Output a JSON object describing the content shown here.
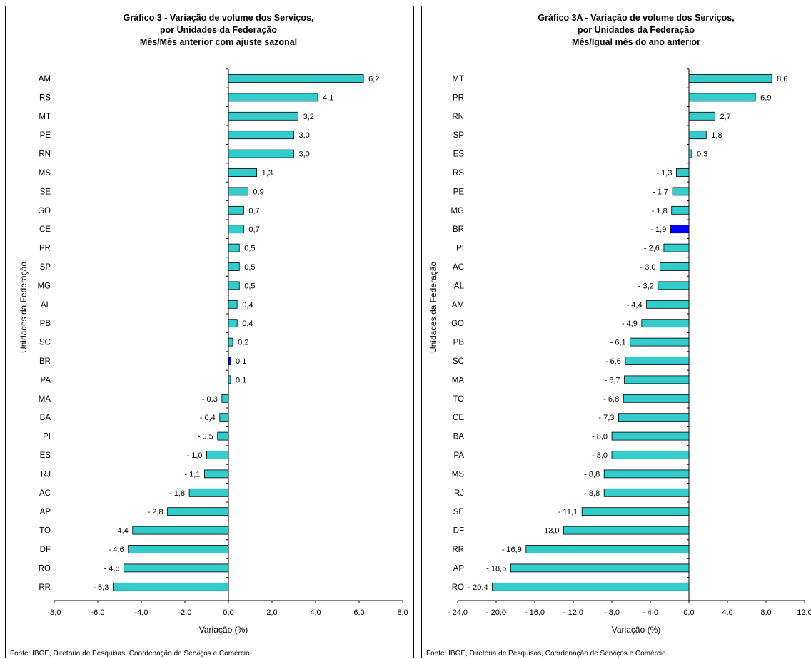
{
  "source_note": "Fonte: IBGE, Diretoria de Pesquisas, Coordenação de Serviços e Comércio.",
  "chart_data": [
    {
      "type": "bar",
      "orientation": "horizontal",
      "title": [
        "Gráfico 3 - Variação de volume dos Serviços,",
        "por Unidades da Federação",
        "Mês/Mês anterior com ajuste sazonal"
      ],
      "xlabel": "Variação (%)",
      "ylabel": "Unidades da Federação",
      "xlim": [
        -8,
        8
      ],
      "xticks": [
        -8,
        -6,
        -4,
        -2,
        0,
        2,
        4,
        6,
        8
      ],
      "xtick_labels": [
        "-8,0",
        "-6,0",
        "-4,0",
        "-2,0",
        "0,0",
        "2,0",
        "4,0",
        "6,0",
        "8,0"
      ],
      "categories": [
        "AM",
        "RS",
        "MT",
        "PE",
        "RN",
        "MS",
        "SE",
        "GO",
        "CE",
        "PR",
        "SP",
        "MG",
        "AL",
        "PB",
        "SC",
        "BR",
        "PA",
        "MA",
        "BA",
        "PI",
        "ES",
        "RJ",
        "AC",
        "AP",
        "TO",
        "DF",
        "RO",
        "RR"
      ],
      "values": [
        6.2,
        4.1,
        3.2,
        3.0,
        3.0,
        1.3,
        0.9,
        0.7,
        0.7,
        0.5,
        0.5,
        0.5,
        0.4,
        0.4,
        0.2,
        0.1,
        0.1,
        -0.3,
        -0.4,
        -0.5,
        -1.0,
        -1.1,
        -1.8,
        -2.8,
        -4.4,
        -4.6,
        -4.8,
        -5.3
      ],
      "data_labels": [
        "6,2",
        "4,1",
        "3,2",
        "3,0",
        "3,0",
        "1,3",
        "0,9",
        "0,7",
        "0,7",
        "0,5",
        "0,5",
        "0,5",
        "0,4",
        "0,4",
        "0,2",
        "0,1",
        "0,1",
        "- 0,3",
        "- 0,4",
        "- 0,5",
        "- 1,0",
        "- 1,1",
        "- 1,8",
        "- 2,8",
        "- 4,4",
        "- 4,6",
        "- 4,8",
        "- 5,3"
      ],
      "bar_color": "#33CCCC",
      "highlight_category": "BR",
      "highlight_color": "#0000FF",
      "grid": false,
      "legend": "none"
    },
    {
      "type": "bar",
      "orientation": "horizontal",
      "title": [
        "Gráfico 3A - Variação de volume dos Serviços,",
        "por Unidades da Federação",
        "Mês/Igual mês do ano anterior"
      ],
      "xlabel": "Variação (%)",
      "ylabel": "Unidades da Federação",
      "xlim": [
        -24,
        12
      ],
      "xticks": [
        -24,
        -20,
        -16,
        -12,
        -8,
        -4,
        0,
        4,
        8,
        12
      ],
      "xtick_labels": [
        "- 24,0",
        "- 20,0",
        "- 16,0",
        "- 12,0",
        "- 8,0",
        "- 4,0",
        "0,0",
        "4,0",
        "8,0",
        "12,0"
      ],
      "categories": [
        "MT",
        "PR",
        "RN",
        "SP",
        "ES",
        "RS",
        "PE",
        "MG",
        "BR",
        "PI",
        "AC",
        "AL",
        "AM",
        "GO",
        "PB",
        "SC",
        "MA",
        "TO",
        "CE",
        "BA",
        "PA",
        "MS",
        "RJ",
        "SE",
        "DF",
        "RR",
        "AP",
        "RO"
      ],
      "values": [
        8.6,
        6.9,
        2.7,
        1.8,
        0.3,
        -1.3,
        -1.7,
        -1.8,
        -1.9,
        -2.6,
        -3.0,
        -3.2,
        -4.4,
        -4.9,
        -6.1,
        -6.6,
        -6.7,
        -6.8,
        -7.3,
        -8.0,
        -8.0,
        -8.8,
        -8.8,
        -11.1,
        -13.0,
        -16.9,
        -18.5,
        -20.4
      ],
      "data_labels": [
        "8,6",
        "6,9",
        "2,7",
        "1,8",
        "0,3",
        "- 1,3",
        "- 1,7",
        "- 1,8",
        "- 1,9",
        "- 2,6",
        "- 3,0",
        "- 3,2",
        "- 4,4",
        "- 4,9",
        "- 6,1",
        "- 6,6",
        "- 6,7",
        "- 6,8",
        "- 7,3",
        "- 8,0",
        "- 8,0",
        "- 8,8",
        "- 8,8",
        "- 11,1",
        "- 13,0",
        "- 16,9",
        "- 18,5",
        "- 20,4"
      ],
      "bar_color": "#33CCCC",
      "highlight_category": "BR",
      "highlight_color": "#0000FF",
      "grid": false,
      "legend": "none"
    }
  ]
}
